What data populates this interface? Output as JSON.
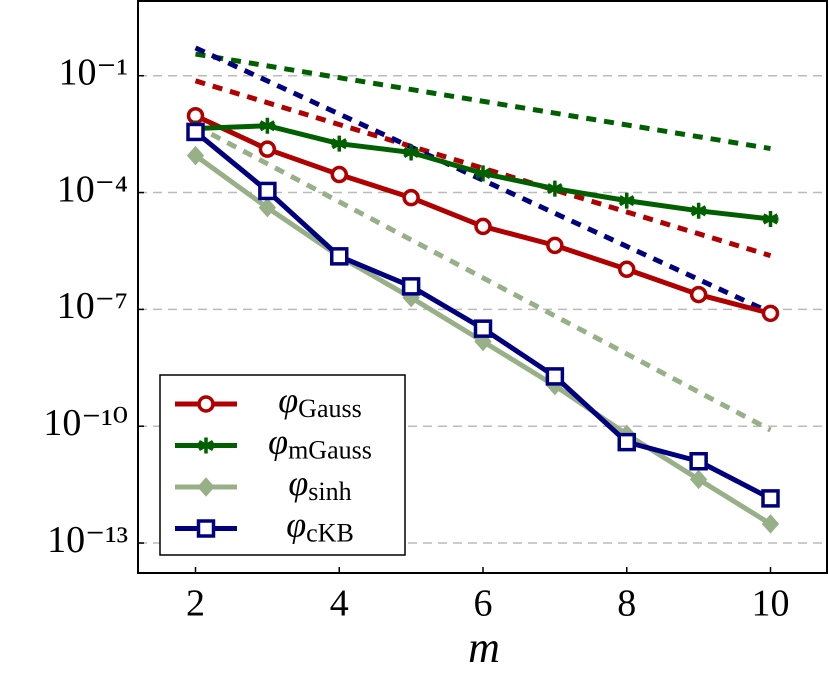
{
  "chart_data": {
    "type": "line",
    "x_label": "m",
    "x": [
      2,
      3,
      4,
      5,
      6,
      7,
      8,
      9,
      10
    ],
    "xlim": [
      1.2,
      10.8
    ],
    "xticks": [
      2,
      4,
      6,
      8,
      10
    ],
    "log_y": true,
    "ylim": [
      1.7e-14,
      8.3
    ],
    "yticks": [
      {
        "value": 0.1,
        "label": "10⁻¹"
      },
      {
        "value": 0.0001,
        "label": "10⁻⁴"
      },
      {
        "value": 1e-07,
        "label": "10⁻⁷"
      },
      {
        "value": 1e-10,
        "label": "10⁻¹⁰"
      },
      {
        "value": 1e-13,
        "label": "10⁻¹³"
      }
    ],
    "grid": true,
    "legend": "lower left",
    "series": [
      {
        "name": "φGauss",
        "color": "#b00000",
        "marker": "circle",
        "values": [
          0.0094,
          0.0013,
          0.00029,
          7.4e-05,
          1.35e-05,
          4.4e-06,
          1.07e-06,
          2.4e-07,
          7.9e-08
        ]
      },
      {
        "name": "φmGauss",
        "color": "#006000",
        "marker": "asterisk",
        "values": [
          0.0044,
          0.0052,
          0.0018,
          0.00107,
          0.00031,
          0.000126,
          6.2e-05,
          3.4e-05,
          2.1e-05
        ]
      },
      {
        "name": "φsinh",
        "color": "#98b088",
        "marker": "diamond",
        "values": [
          0.00089,
          4.1e-05,
          2.3e-06,
          2e-07,
          1.5e-08,
          1.1e-09,
          6.2e-11,
          4.3e-12,
          3.1e-13
        ]
      },
      {
        "name": "φcKB",
        "color": "#00007f",
        "marker": "square",
        "values": [
          0.0036,
          0.00011,
          2.3e-06,
          3.9e-07,
          3.2e-08,
          1.9e-09,
          3.9e-11,
          1.26e-11,
          1.4e-12
        ]
      }
    ],
    "reference_lines": [
      {
        "color": "#b00000",
        "x": [
          2,
          10
        ],
        "values": [
          0.074,
          2.4e-06
        ]
      },
      {
        "color": "#006000",
        "x": [
          2,
          10
        ],
        "values": [
          0.36,
          0.00135
        ]
      },
      {
        "color": "#00007f",
        "x": [
          2,
          10
        ],
        "values": [
          0.52,
          8.3e-08
        ]
      },
      {
        "color": "#98b088",
        "x": [
          2,
          10
        ],
        "values": [
          0.0052,
          8e-11
        ]
      }
    ]
  }
}
